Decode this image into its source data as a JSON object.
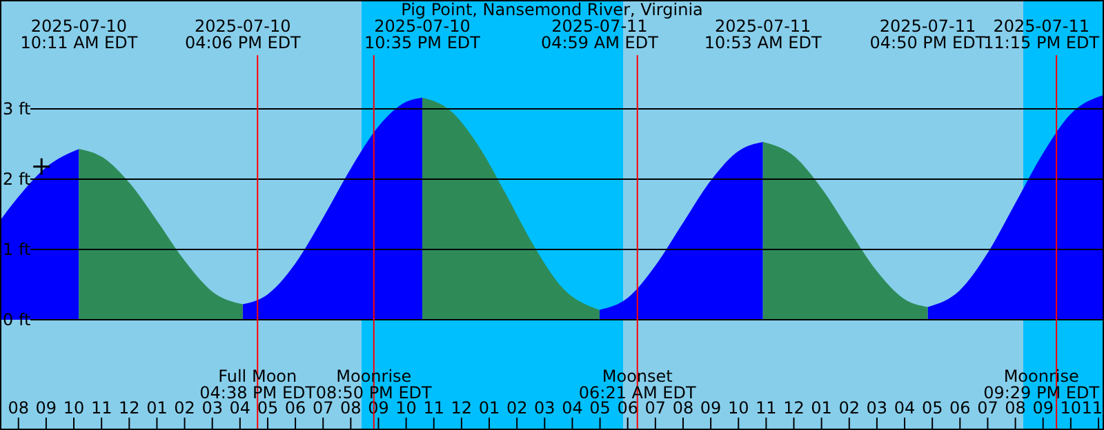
{
  "chart_data": {
    "type": "area",
    "title": "Pig Point, Nansemond River, Virginia",
    "xlim": [
      "2025-07-10T07:20",
      "2025-07-11T23:12"
    ],
    "ylim": [
      -1.57,
      4.55
    ],
    "yticks": [
      {
        "value": 0,
        "label": "0 ft"
      },
      {
        "value": 1,
        "label": "1 ft"
      },
      {
        "value": 2,
        "label": "2 ft"
      },
      {
        "value": 3,
        "label": "3 ft"
      }
    ],
    "xticks": [
      {
        "value": "2025-07-10T08:00",
        "label": "08"
      },
      {
        "value": "2025-07-10T09:00",
        "label": "09"
      },
      {
        "value": "2025-07-10T10:00",
        "label": "10"
      },
      {
        "value": "2025-07-10T11:00",
        "label": "11"
      },
      {
        "value": "2025-07-10T12:00",
        "label": "12"
      },
      {
        "value": "2025-07-10T13:00",
        "label": "01"
      },
      {
        "value": "2025-07-10T14:00",
        "label": "02"
      },
      {
        "value": "2025-07-10T15:00",
        "label": "03"
      },
      {
        "value": "2025-07-10T16:00",
        "label": "04"
      },
      {
        "value": "2025-07-10T17:00",
        "label": "05"
      },
      {
        "value": "2025-07-10T18:00",
        "label": "06"
      },
      {
        "value": "2025-07-10T19:00",
        "label": "07"
      },
      {
        "value": "2025-07-10T20:00",
        "label": "08"
      },
      {
        "value": "2025-07-10T21:00",
        "label": "09"
      },
      {
        "value": "2025-07-10T22:00",
        "label": "10"
      },
      {
        "value": "2025-07-10T23:00",
        "label": "11"
      },
      {
        "value": "2025-07-11T00:00",
        "label": "12"
      },
      {
        "value": "2025-07-11T01:00",
        "label": "01"
      },
      {
        "value": "2025-07-11T02:00",
        "label": "02"
      },
      {
        "value": "2025-07-11T03:00",
        "label": "03"
      },
      {
        "value": "2025-07-11T04:00",
        "label": "04"
      },
      {
        "value": "2025-07-11T05:00",
        "label": "05"
      },
      {
        "value": "2025-07-11T06:00",
        "label": "06"
      },
      {
        "value": "2025-07-11T07:00",
        "label": "07"
      },
      {
        "value": "2025-07-11T08:00",
        "label": "08"
      },
      {
        "value": "2025-07-11T09:00",
        "label": "09"
      },
      {
        "value": "2025-07-11T10:00",
        "label": "10"
      },
      {
        "value": "2025-07-11T11:00",
        "label": "11"
      },
      {
        "value": "2025-07-11T12:00",
        "label": "12"
      },
      {
        "value": "2025-07-11T13:00",
        "label": "01"
      },
      {
        "value": "2025-07-11T14:00",
        "label": "02"
      },
      {
        "value": "2025-07-11T15:00",
        "label": "03"
      },
      {
        "value": "2025-07-11T16:00",
        "label": "04"
      },
      {
        "value": "2025-07-11T17:00",
        "label": "05"
      },
      {
        "value": "2025-07-11T18:00",
        "label": "06"
      },
      {
        "value": "2025-07-11T19:00",
        "label": "07"
      },
      {
        "value": "2025-07-11T20:00",
        "label": "08"
      },
      {
        "value": "2025-07-11T21:00",
        "label": "09"
      },
      {
        "value": "2025-07-11T22:00",
        "label": "10"
      },
      {
        "value": "2025-07-11T23:00",
        "label": "11"
      }
    ],
    "grid": "y",
    "bands": [
      {
        "axis": "x",
        "from": "2025-07-10T07:20",
        "to": "2025-07-10T20:23",
        "color": "#87ceeb"
      },
      {
        "axis": "x",
        "from": "2025-07-10T20:23",
        "to": "2025-07-11T05:50",
        "color": "#00bfff"
      },
      {
        "axis": "x",
        "from": "2025-07-11T05:50",
        "to": "2025-07-11T20:17",
        "color": "#87ceeb"
      },
      {
        "axis": "x",
        "from": "2025-07-11T20:17",
        "to": "2025-07-11T23:12",
        "color": "#00bfff"
      }
    ],
    "ref_lines": [
      {
        "axis": "x",
        "value": "2025-07-10T16:38",
        "label": "Full Moon\n04:38 PM EDT",
        "color": "#ff0000"
      },
      {
        "axis": "x",
        "value": "2025-07-10T20:50",
        "label": "Moonrise\n08:50 PM EDT",
        "color": "#ff0000"
      },
      {
        "axis": "x",
        "value": "2025-07-11T06:21",
        "label": "Moonset\n06:21 AM EDT",
        "color": "#ff0000"
      },
      {
        "axis": "x",
        "value": "2025-07-11T21:29",
        "label": "Moonrise\n09:29 PM EDT",
        "color": "#ff0000"
      }
    ],
    "x": [
      "2025-07-10T07:20",
      "2025-07-10T08:00",
      "2025-07-10T09:00",
      "2025-07-10T10:11",
      "2025-07-10T11:00",
      "2025-07-10T12:00",
      "2025-07-10T13:00",
      "2025-07-10T14:00",
      "2025-07-10T15:00",
      "2025-07-10T16:06",
      "2025-07-10T17:00",
      "2025-07-10T18:00",
      "2025-07-10T19:00",
      "2025-07-10T20:00",
      "2025-07-10T21:00",
      "2025-07-10T22:00",
      "2025-07-10T22:35",
      "2025-07-10T23:35",
      "2025-07-11T00:35",
      "2025-07-11T01:35",
      "2025-07-11T02:35",
      "2025-07-11T03:35",
      "2025-07-11T04:59",
      "2025-07-11T06:00",
      "2025-07-11T07:00",
      "2025-07-11T08:00",
      "2025-07-11T09:00",
      "2025-07-11T10:00",
      "2025-07-11T10:53",
      "2025-07-11T12:00",
      "2025-07-11T13:00",
      "2025-07-11T14:00",
      "2025-07-11T15:00",
      "2025-07-11T16:00",
      "2025-07-11T16:50",
      "2025-07-11T18:00",
      "2025-07-11T19:00",
      "2025-07-11T20:00",
      "2025-07-11T21:00",
      "2025-07-11T22:00",
      "2025-07-11T23:12"
    ],
    "series": [
      {
        "color": "#0000ff",
        "values": [
          1.41,
          1.75,
          2.17,
          2.43,
          null,
          null,
          null,
          null,
          null,
          0.22,
          0.36,
          0.8,
          1.45,
          2.15,
          2.75,
          3.1,
          3.16,
          null,
          null,
          null,
          null,
          null,
          0.14,
          0.31,
          0.77,
          1.38,
          1.98,
          2.4,
          2.53,
          null,
          null,
          null,
          null,
          null,
          0.18,
          0.42,
          0.95,
          1.66,
          2.37,
          2.93,
          3.2
        ]
      },
      {
        "color": "#2e8b57",
        "values": [
          null,
          null,
          null,
          2.43,
          2.32,
          1.95,
          1.41,
          0.84,
          0.4,
          0.22,
          null,
          null,
          null,
          null,
          null,
          null,
          3.16,
          2.98,
          2.49,
          1.8,
          1.07,
          0.48,
          0.14,
          null,
          null,
          null,
          null,
          null,
          2.53,
          2.33,
          1.87,
          1.27,
          0.69,
          0.29,
          0.18,
          null,
          null,
          null,
          null,
          null,
          null
        ]
      },
      {
        "type": "scatter",
        "marker": "cross",
        "color": "#000000",
        "x": [
          "2025-07-10T08:50"
        ],
        "values": [
          2.18
        ]
      }
    ],
    "annotations": [
      "2025-07-10\n10:11 AM EDT",
      "2025-07-10\n04:06 PM EDT",
      "2025-07-10\n10:35 PM EDT",
      "2025-07-11\n04:59 AM EDT",
      "2025-07-11\n10:53 AM EDT",
      "2025-07-11\n04:50 PM EDT",
      "2025-07-11\n11:15 PM EDT"
    ]
  }
}
